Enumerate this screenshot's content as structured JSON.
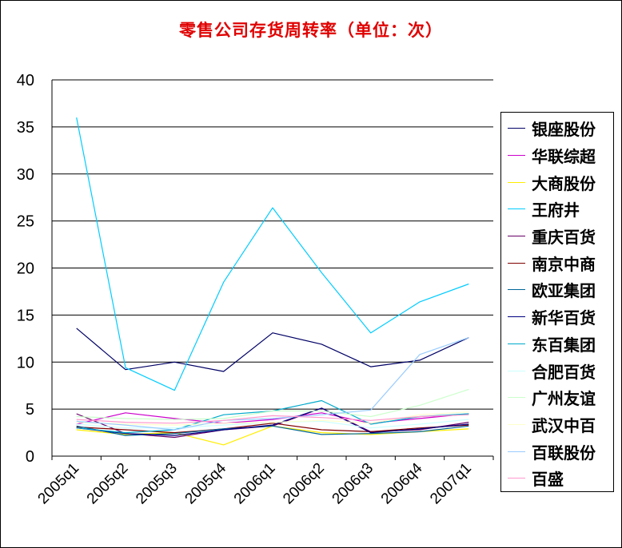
{
  "chart_data": {
    "type": "line",
    "title": "零售公司存货周转率（单位：次）",
    "categories": [
      "2005q1",
      "2005q2",
      "2005q3",
      "2005q4",
      "2006q1",
      "2006q2",
      "2006q3",
      "2006q4",
      "2007q1"
    ],
    "ylim": [
      0,
      40
    ],
    "yticks": [
      0,
      5,
      10,
      15,
      20,
      25,
      30,
      35,
      40
    ],
    "grid": "horizontal",
    "legend_position": "right",
    "series": [
      {
        "name": "银座股份",
        "color": "#000066",
        "values": [
          13.6,
          9.2,
          10.0,
          9.0,
          13.1,
          11.9,
          9.5,
          10.2,
          12.6
        ]
      },
      {
        "name": "华联综超",
        "color": "#cc00cc",
        "values": [
          3.4,
          4.6,
          4.0,
          3.5,
          3.9,
          4.6,
          3.5,
          4.0,
          4.5
        ]
      },
      {
        "name": "大商股份",
        "color": "#ffee00",
        "values": [
          2.8,
          2.3,
          2.5,
          1.2,
          3.2,
          2.5,
          2.3,
          2.6,
          2.9
        ]
      },
      {
        "name": "王府井",
        "color": "#00ccff",
        "values": [
          36.0,
          9.4,
          7.0,
          18.5,
          26.4,
          19.5,
          13.1,
          16.4,
          18.3
        ]
      },
      {
        "name": "重庆百货",
        "color": "#660066",
        "values": [
          4.5,
          2.4,
          2.0,
          2.8,
          3.2,
          5.1,
          2.6,
          2.8,
          3.6
        ]
      },
      {
        "name": "南京中商",
        "color": "#800000",
        "values": [
          3.1,
          2.8,
          2.5,
          2.9,
          3.5,
          2.8,
          2.6,
          3.0,
          3.3
        ]
      },
      {
        "name": "欧亚集团",
        "color": "#006699",
        "values": [
          3.2,
          2.2,
          2.4,
          2.9,
          3.2,
          2.3,
          2.4,
          2.6,
          3.2
        ]
      },
      {
        "name": "新华百货",
        "color": "#000080",
        "values": [
          3.0,
          2.4,
          2.2,
          2.8,
          3.3,
          5.1,
          2.5,
          2.9,
          3.4
        ]
      },
      {
        "name": "东百集团",
        "color": "#00aacc",
        "values": [
          3.0,
          2.5,
          2.8,
          4.4,
          4.8,
          5.9,
          3.4,
          4.2,
          4.5
        ]
      },
      {
        "name": "合肥百货",
        "color": "#ccffff",
        "values": [
          3.4,
          3.0,
          3.0,
          3.3,
          3.6,
          3.7,
          3.0,
          3.4,
          3.9
        ]
      },
      {
        "name": "广州友谊",
        "color": "#ccffcc",
        "values": [
          4.2,
          4.0,
          3.9,
          4.0,
          4.8,
          4.8,
          4.2,
          5.4,
          7.1
        ]
      },
      {
        "name": "武汉中百",
        "color": "#ffffcc",
        "values": [
          3.6,
          3.4,
          3.3,
          3.5,
          3.6,
          3.8,
          3.5,
          4.4,
          4.7
        ]
      },
      {
        "name": "百联股份",
        "color": "#99ccff",
        "values": [
          3.7,
          3.3,
          2.8,
          3.8,
          4.0,
          4.4,
          4.9,
          10.8,
          12.6
        ]
      },
      {
        "name": "百盛",
        "color": "#ff99cc",
        "values": [
          3.9,
          3.6,
          3.5,
          3.8,
          4.3,
          4.1,
          3.8,
          4.2,
          4.4
        ]
      }
    ]
  }
}
